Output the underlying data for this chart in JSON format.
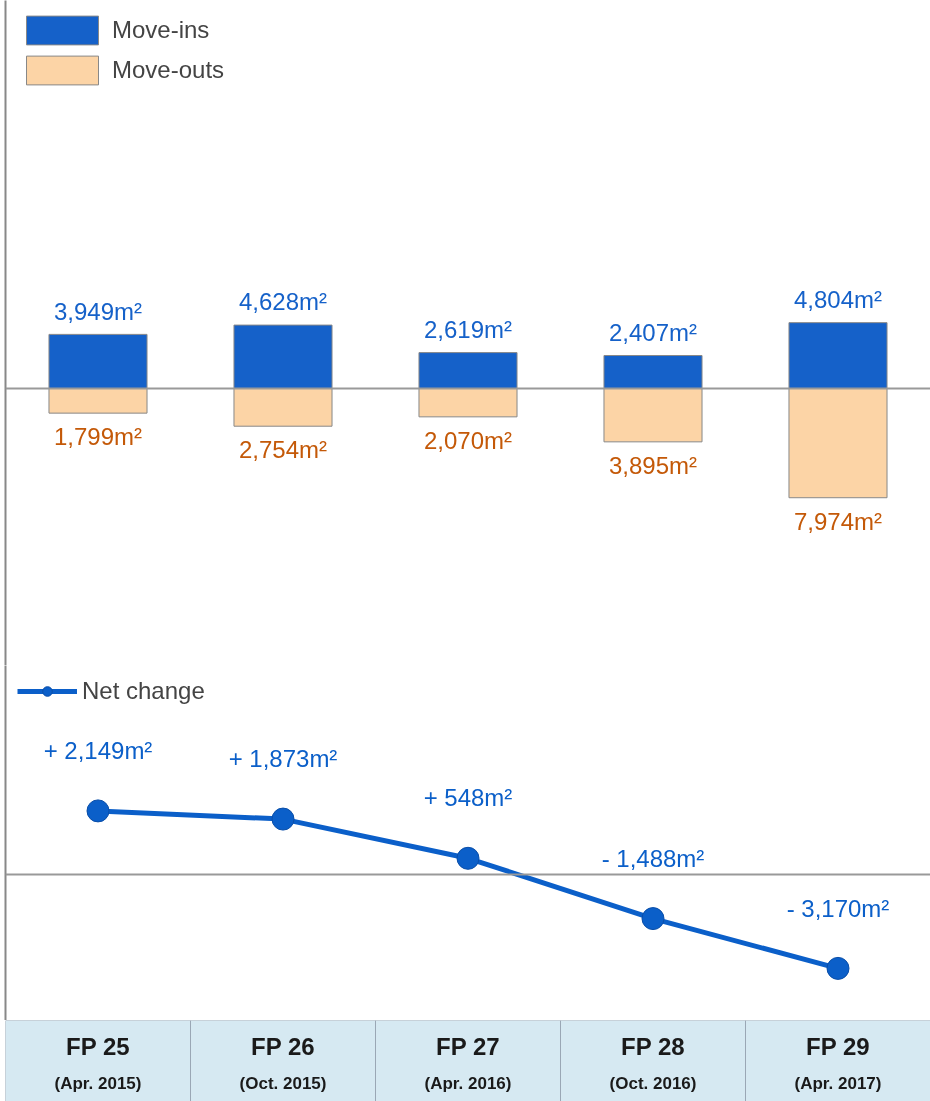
{
  "chart_data": [
    {
      "type": "bar",
      "stacked": true,
      "categories": [
        "FP 25\n(Apr. 2015)",
        "FP 26\n(Oct. 2015)",
        "FP 27\n(Apr. 2016)",
        "FP 28\n(Oct. 2016)",
        "FP 29\n(Apr. 2017)"
      ],
      "series": [
        {
          "name": "Move-ins",
          "color": "#1561c9",
          "values": [
            3949,
            4628,
            2619,
            2407,
            4804
          ],
          "value_labels": [
            "3,949m²",
            "4,628m²",
            "2,619m²",
            "2,407m²",
            "4,804m²"
          ]
        },
        {
          "name": "Move-outs",
          "color": "#fcd4a6",
          "values": [
            -1799,
            -2754,
            -2070,
            -3895,
            -7974
          ]
        }
      ],
      "annotations": [
        {
          "text": "1,799m²",
          "x": "FP 25\n(Apr. 2015)",
          "y": -1799
        },
        {
          "text": "2,754m²",
          "x": "FP 26\n(Oct. 2015)",
          "y": -2754
        },
        {
          "text": "2,070m²",
          "x": "FP 27\n(Apr. 2016)",
          "y": -2070
        },
        {
          "text": "3,895m²",
          "x": "FP 28\n(Oct. 2016)",
          "y": -3895
        },
        {
          "text": "7,974m²",
          "x": "FP 29\n(Apr. 2017)",
          "y": -7974
        }
      ],
      "ylim": [
        -20220,
        28320
      ],
      "tick_labels": false,
      "legend": "top left",
      "grid": false,
      "ref_lines": [
        {
          "axis": "y",
          "value": 0,
          "color": "#999999"
        }
      ]
    },
    {
      "type": "line",
      "categories": [
        "FP 25\n(Apr. 2015)",
        "FP 26\n(Oct. 2015)",
        "FP 27\n(Apr. 2016)",
        "FP 28\n(Oct. 2016)",
        "FP 29\n(Apr. 2017)"
      ],
      "series": [
        {
          "name": "Net change",
          "color": "#0b5fc9",
          "values": [
            2149,
            1873,
            548,
            -1488,
            -3170
          ],
          "value_labels": [
            "+ 2,149m²",
            "+ 1,873m²",
            "+ 548m²",
            "- 1,488m²",
            "- 3,170m²"
          ]
        }
      ],
      "ylim": [
        -4930,
        7060
      ],
      "tick_labels": "x",
      "legend": "top left",
      "grid": false,
      "marker": "circle",
      "line_style": "solid",
      "ref_lines": [
        {
          "axis": "y",
          "value": 0,
          "color": "#999999"
        }
      ]
    }
  ]
}
